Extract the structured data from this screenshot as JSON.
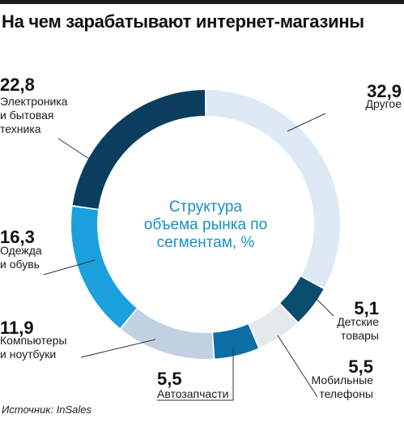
{
  "title": "На чем зарабатывают интернет-магазины",
  "source": "Источник: InSales",
  "chart_data": {
    "type": "pie",
    "style": "donut",
    "center_label": [
      "Структура",
      "объема рынка по",
      "сегментам, %"
    ],
    "slices": [
      {
        "label_lines": [
          "Другое"
        ],
        "value": 32.9,
        "value_text": "32,9",
        "color": "#dde9f5"
      },
      {
        "label_lines": [
          "Детские",
          "товары"
        ],
        "value": 5.1,
        "value_text": "5,1",
        "color": "#0a4c6e"
      },
      {
        "label_lines": [
          "Мобильные",
          "телефоны"
        ],
        "value": 5.5,
        "value_text": "5,5",
        "color": "#e4e9ee"
      },
      {
        "label_lines": [
          "Автозапчасти"
        ],
        "value": 5.5,
        "value_text": "5,5",
        "color": "#0b6ea5"
      },
      {
        "label_lines": [
          "Компьютеры",
          "и ноутбуки"
        ],
        "value": 11.9,
        "value_text": "11,9",
        "color": "#c2d1e2"
      },
      {
        "label_lines": [
          "Одежда",
          "и обувь"
        ],
        "value": 16.3,
        "value_text": "16,3",
        "color": "#1aa0dd"
      },
      {
        "label_lines": [
          "Электроника",
          "и бытовая",
          "техника"
        ],
        "value": 22.8,
        "value_text": "22,8",
        "color": "#0b3d5e"
      }
    ],
    "center_text_color": "#1a8fc4",
    "leader_color": "#333333"
  }
}
